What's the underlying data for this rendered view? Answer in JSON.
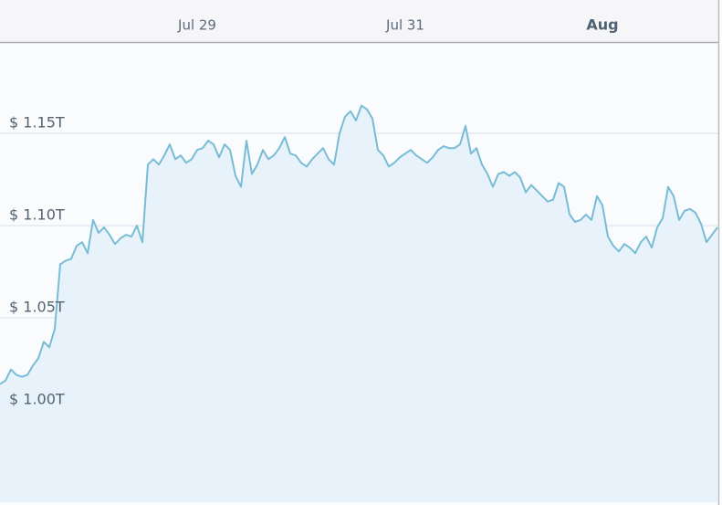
{
  "chart_data": {
    "type": "area",
    "categories": [
      null,
      null,
      null,
      null,
      null,
      null,
      null,
      null,
      null,
      null,
      null,
      null,
      null,
      null,
      null,
      null,
      null,
      null,
      null,
      null,
      null,
      null,
      null,
      null,
      null,
      null,
      null,
      null,
      null,
      null,
      null,
      null,
      null,
      null,
      null,
      null,
      "Jul 29",
      null,
      null,
      null,
      null,
      null,
      null,
      null,
      null,
      null,
      null,
      null,
      null,
      null,
      null,
      null,
      null,
      null,
      null,
      null,
      null,
      null,
      null,
      null,
      null,
      null,
      null,
      null,
      null,
      null,
      null,
      null,
      null,
      null,
      null,
      null,
      null,
      null,
      "Jul 31",
      null,
      null,
      null,
      null,
      null,
      null,
      null,
      null,
      null,
      null,
      null,
      null,
      null,
      null,
      null,
      null,
      null,
      null,
      null,
      null,
      null,
      null,
      null,
      null,
      null,
      null,
      null,
      null,
      null,
      null,
      null,
      null,
      null,
      null,
      null,
      "Aug",
      null,
      null,
      null,
      null,
      null,
      null,
      null,
      null,
      null,
      null,
      null,
      null,
      null,
      null,
      null,
      null,
      null,
      null,
      null,
      null,
      null
    ],
    "values": [
      1.014,
      1.016,
      1.022,
      1.019,
      1.018,
      1.019,
      1.024,
      1.028,
      1.037,
      1.034,
      1.044,
      1.079,
      1.081,
      1.082,
      1.089,
      1.091,
      1.085,
      1.103,
      1.096,
      1.099,
      1.095,
      1.09,
      1.093,
      1.095,
      1.094,
      1.1,
      1.091,
      1.133,
      1.136,
      1.133,
      1.138,
      1.144,
      1.136,
      1.138,
      1.134,
      1.136,
      1.141,
      1.142,
      1.146,
      1.144,
      1.137,
      1.144,
      1.141,
      1.127,
      1.121,
      1.146,
      1.128,
      1.133,
      1.141,
      1.136,
      1.138,
      1.142,
      1.148,
      1.139,
      1.138,
      1.134,
      1.132,
      1.136,
      1.139,
      1.142,
      1.136,
      1.133,
      1.15,
      1.159,
      1.162,
      1.157,
      1.165,
      1.163,
      1.158,
      1.141,
      1.138,
      1.132,
      1.134,
      1.137,
      1.139,
      1.141,
      1.138,
      1.136,
      1.134,
      1.137,
      1.141,
      1.143,
      1.142,
      1.142,
      1.144,
      1.154,
      1.139,
      1.142,
      1.133,
      1.128,
      1.121,
      1.128,
      1.129,
      1.127,
      1.129,
      1.126,
      1.118,
      1.122,
      1.119,
      1.116,
      1.113,
      1.114,
      1.123,
      1.121,
      1.106,
      1.102,
      1.103,
      1.106,
      1.103,
      1.116,
      1.111,
      1.094,
      1.089,
      1.086,
      1.09,
      1.088,
      1.085,
      1.091,
      1.094,
      1.088,
      1.099,
      1.104,
      1.121,
      1.116,
      1.103,
      1.108,
      1.109,
      1.107,
      1.101,
      1.091,
      1.095,
      1.099
    ],
    "color": "#78bcd6",
    "fill_color": "#e8f2fa",
    "ylim": [
      0.95,
      1.2
    ],
    "yticks": [
      {
        "value": 1.0,
        "label": "$ 1.00T"
      },
      {
        "value": 1.05,
        "label": "$ 1.05T"
      },
      {
        "value": 1.1,
        "label": "$ 1.10T"
      },
      {
        "value": 1.15,
        "label": "$ 1.15T"
      }
    ],
    "grid": true
  }
}
